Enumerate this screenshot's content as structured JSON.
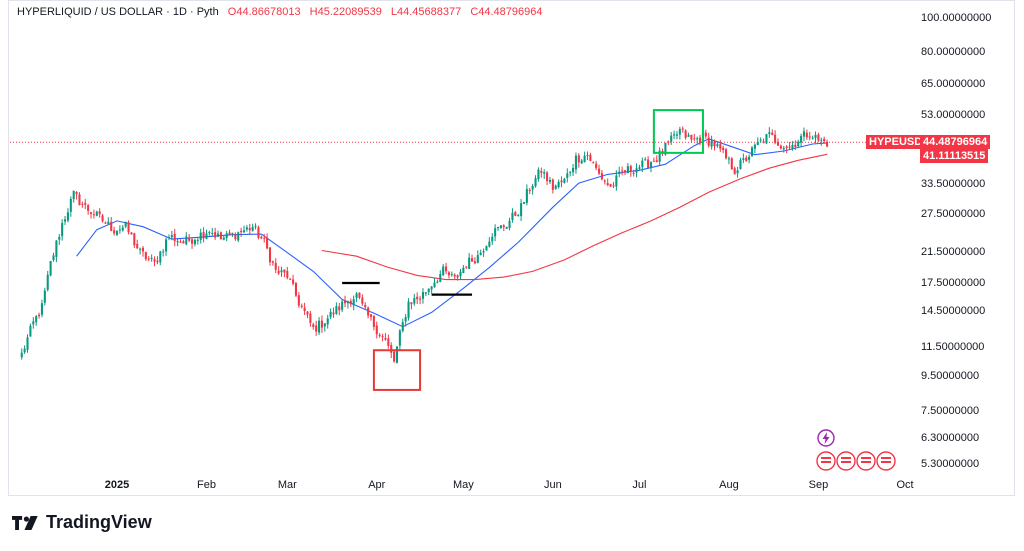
{
  "header": {
    "title": "HYPERLIQUID / US DOLLAR · 1D · Pyth",
    "open": "O44.86678013",
    "high": "H45.22089539",
    "low": "L44.45688377",
    "close": "C44.48796964"
  },
  "brand": {
    "name": "TradingView"
  },
  "price_tags": {
    "symbol": "HYPEUSD",
    "last": "44.48796964",
    "ma": "41.11113515"
  },
  "colors": {
    "up": "#089981",
    "down": "#f23645",
    "ma_fast": "#2962ff",
    "ma_slow": "#f23645",
    "green_box": "#00c853",
    "red_box": "#e53935"
  },
  "chart_data": {
    "type": "candlestick",
    "title": "HYPERLIQUID / US DOLLAR · 1D · Pyth",
    "y_scale": "log",
    "ylim": [
      5.2,
      105
    ],
    "y_ticks": [
      "100.00000000",
      "80.00000000",
      "65.00000000",
      "53.00000000",
      "33.50000000",
      "27.50000000",
      "21.50000000",
      "17.50000000",
      "14.50000000",
      "11.50000000",
      "9.50000000",
      "7.50000000",
      "6.30000000",
      "5.30000000"
    ],
    "x_ticks": [
      {
        "label": "2025",
        "date": "2025-01-01",
        "bold": true
      },
      {
        "label": "Feb",
        "date": "2025-02-01",
        "bold": false
      },
      {
        "label": "Mar",
        "date": "2025-03-01",
        "bold": false
      },
      {
        "label": "Apr",
        "date": "2025-04-01",
        "bold": false
      },
      {
        "label": "May",
        "date": "2025-05-01",
        "bold": false
      },
      {
        "label": "Jun",
        "date": "2025-06-01",
        "bold": false
      },
      {
        "label": "Jul",
        "date": "2025-07-01",
        "bold": false
      },
      {
        "label": "Aug",
        "date": "2025-08-01",
        "bold": false
      },
      {
        "label": "Sep",
        "date": "2025-09-01",
        "bold": false
      },
      {
        "label": "Oct",
        "date": "2025-10-01",
        "bold": false
      }
    ],
    "last_price": 44.48796964,
    "path_anchors": [
      [
        "2024-11-29",
        11.0
      ],
      [
        "2024-12-03",
        13.5
      ],
      [
        "2024-12-06",
        15.0
      ],
      [
        "2024-12-09",
        20.0
      ],
      [
        "2024-12-13",
        26.0
      ],
      [
        "2024-12-17",
        31.5
      ],
      [
        "2024-12-21",
        29.0
      ],
      [
        "2024-12-26",
        27.0
      ],
      [
        "2024-12-31",
        25.0
      ],
      [
        "2025-01-04",
        25.5
      ],
      [
        "2025-01-09",
        21.5
      ],
      [
        "2025-01-14",
        20.0
      ],
      [
        "2025-01-19",
        24.0
      ],
      [
        "2025-01-24",
        23.0
      ],
      [
        "2025-01-29",
        24.0
      ],
      [
        "2025-02-02",
        25.0
      ],
      [
        "2025-02-06",
        23.5
      ],
      [
        "2025-02-12",
        24.5
      ],
      [
        "2025-02-17",
        25.5
      ],
      [
        "2025-02-21",
        23.0
      ],
      [
        "2025-02-25",
        19.0
      ],
      [
        "2025-03-01",
        18.5
      ],
      [
        "2025-03-05",
        15.5
      ],
      [
        "2025-03-10",
        13.0
      ],
      [
        "2025-03-13",
        13.5
      ],
      [
        "2025-03-17",
        14.5
      ],
      [
        "2025-03-21",
        15.5
      ],
      [
        "2025-03-25",
        16.2
      ],
      [
        "2025-03-28",
        14.5
      ],
      [
        "2025-04-01",
        13.0
      ],
      [
        "2025-04-04",
        12.0
      ],
      [
        "2025-04-07",
        10.5
      ],
      [
        "2025-04-09",
        12.5
      ],
      [
        "2025-04-12",
        15.5
      ],
      [
        "2025-04-16",
        16.0
      ],
      [
        "2025-04-20",
        17.5
      ],
      [
        "2025-04-24",
        19.0
      ],
      [
        "2025-04-28",
        18.0
      ],
      [
        "2025-05-02",
        20.0
      ],
      [
        "2025-05-06",
        21.0
      ],
      [
        "2025-05-11",
        24.5
      ],
      [
        "2025-05-16",
        26.0
      ],
      [
        "2025-05-21",
        29.0
      ],
      [
        "2025-05-24",
        33.0
      ],
      [
        "2025-05-28",
        37.0
      ],
      [
        "2025-06-01",
        33.0
      ],
      [
        "2025-06-05",
        34.5
      ],
      [
        "2025-06-09",
        40.0
      ],
      [
        "2025-06-13",
        41.0
      ],
      [
        "2025-06-17",
        36.0
      ],
      [
        "2025-06-21",
        33.0
      ],
      [
        "2025-06-25",
        36.5
      ],
      [
        "2025-06-29",
        37.5
      ],
      [
        "2025-07-03",
        38.5
      ],
      [
        "2025-07-07",
        40.0
      ],
      [
        "2025-07-11",
        44.0
      ],
      [
        "2025-07-15",
        48.0
      ],
      [
        "2025-07-19",
        45.0
      ],
      [
        "2025-07-23",
        46.0
      ],
      [
        "2025-07-27",
        44.0
      ],
      [
        "2025-07-31",
        40.0
      ],
      [
        "2025-08-03",
        37.0
      ],
      [
        "2025-08-07",
        40.0
      ],
      [
        "2025-08-11",
        44.0
      ],
      [
        "2025-08-15",
        46.5
      ],
      [
        "2025-08-19",
        44.0
      ],
      [
        "2025-08-22",
        43.0
      ],
      [
        "2025-08-26",
        46.0
      ],
      [
        "2025-08-29",
        47.5
      ],
      [
        "2025-09-01",
        45.0
      ],
      [
        "2025-09-04",
        44.5
      ]
    ],
    "series": [
      {
        "name": "",
        "color": "#2962ff",
        "points": [
          [
            "2024-12-18",
            21.0
          ],
          [
            "2024-12-25",
            25.0
          ],
          [
            "2025-01-01",
            26.5
          ],
          [
            "2025-01-10",
            25.5
          ],
          [
            "2025-01-20",
            23.5
          ],
          [
            "2025-01-30",
            23.8
          ],
          [
            "2025-02-10",
            24.2
          ],
          [
            "2025-02-20",
            24.3
          ],
          [
            "2025-03-01",
            21.5
          ],
          [
            "2025-03-10",
            19.0
          ],
          [
            "2025-03-20",
            15.8
          ],
          [
            "2025-04-01",
            14.3
          ],
          [
            "2025-04-10",
            13.2
          ],
          [
            "2025-04-20",
            14.5
          ],
          [
            "2025-05-01",
            17.0
          ],
          [
            "2025-05-10",
            19.5
          ],
          [
            "2025-05-20",
            23.0
          ],
          [
            "2025-06-01",
            29.0
          ],
          [
            "2025-06-10",
            34.0
          ],
          [
            "2025-06-20",
            36.0
          ],
          [
            "2025-07-01",
            37.0
          ],
          [
            "2025-07-10",
            38.5
          ],
          [
            "2025-07-20",
            43.5
          ],
          [
            "2025-07-25",
            45.5
          ],
          [
            "2025-08-01",
            43.5
          ],
          [
            "2025-08-10",
            41.0
          ],
          [
            "2025-08-20",
            42.0
          ],
          [
            "2025-08-30",
            44.0
          ],
          [
            "2025-09-04",
            44.3
          ]
        ]
      },
      {
        "name": "",
        "color": "#f23645",
        "points": [
          [
            "2025-03-13",
            21.8
          ],
          [
            "2025-03-25",
            21.0
          ],
          [
            "2025-04-05",
            19.5
          ],
          [
            "2025-04-15",
            18.5
          ],
          [
            "2025-04-25",
            18.0
          ],
          [
            "2025-05-05",
            18.0
          ],
          [
            "2025-05-15",
            18.3
          ],
          [
            "2025-05-25",
            19.0
          ],
          [
            "2025-06-05",
            20.5
          ],
          [
            "2025-06-15",
            22.5
          ],
          [
            "2025-06-25",
            24.5
          ],
          [
            "2025-07-05",
            26.5
          ],
          [
            "2025-07-15",
            29.0
          ],
          [
            "2025-07-25",
            32.0
          ],
          [
            "2025-08-05",
            35.0
          ],
          [
            "2025-08-15",
            37.5
          ],
          [
            "2025-08-25",
            39.5
          ],
          [
            "2025-09-04",
            41.1
          ]
        ]
      }
    ],
    "annotations": [
      {
        "type": "hline",
        "color": "#000000",
        "date_start": "2025-03-20",
        "date_end": "2025-04-02",
        "y": 17.6
      },
      {
        "type": "hline",
        "color": "#000000",
        "date_start": "2025-04-20",
        "date_end": "2025-05-04",
        "y": 16.3
      },
      {
        "type": "box",
        "color": "#e53935",
        "date_start": "2025-03-31",
        "date_end": "2025-04-16",
        "y_low": 8.7,
        "y_high": 11.3
      },
      {
        "type": "box",
        "color": "#00c853",
        "date_start": "2025-07-06",
        "date_end": "2025-07-23",
        "y_low": 41.5,
        "y_high": 55.0
      }
    ],
    "grid": false,
    "legend": "none"
  }
}
